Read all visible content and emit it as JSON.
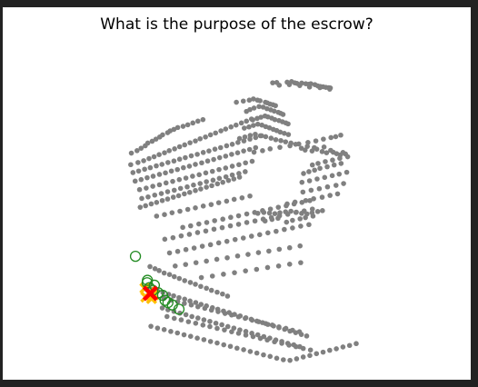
{
  "chart_data": {
    "type": "scatter",
    "title": "What is the purpose of the escrow?",
    "xlabel": "",
    "ylabel": "",
    "axes_visible": false,
    "grid": false,
    "legend": "none",
    "xlim": [
      0,
      100
    ],
    "ylim": [
      0,
      100
    ],
    "colors": {
      "points": "#808080",
      "neighbors": "#228b22",
      "hits": "#ffc000",
      "query": "#ff0000"
    },
    "series": [
      {
        "role": "points",
        "marker": "dot",
        "x": [
          61.1,
          62.4,
          65.7,
          67.1,
          68.1,
          68.8,
          70.3,
          71.6,
          72.5,
          73.2,
          74.5,
          75.4,
          76.2,
          77.1,
          78.0,
          78.9,
          79.4,
          63.2,
          66.4,
          69.7,
          72.8,
          76.1,
          79.2,
          49.6,
          51.8,
          53.7,
          55.0,
          56.3,
          57.1,
          58.8,
          59.4,
          60.3,
          61.2,
          62.0,
          52.8,
          53.9,
          55.2,
          56.8,
          58.1,
          59.3,
          60.5,
          61.6,
          62.9,
          63.6,
          64.4,
          54.8,
          56.2,
          57.4,
          58.7,
          59.6,
          60.8,
          61.8,
          63.1,
          64.2,
          65.3,
          66.0,
          52.1,
          53.6,
          55.0,
          56.4,
          57.7,
          58.9,
          60.1,
          61.3,
          62.4,
          63.5,
          64.8,
          66.1,
          50.6,
          52.3,
          54.0,
          55.6,
          57.2,
          58.9,
          60.6,
          62.1,
          63.7,
          65.2,
          66.9,
          68.4,
          55.2,
          57.9,
          60.3,
          63.4,
          66.6,
          69.4,
          72.3,
          74.8,
          77.2,
          79.6,
          81.1,
          82.7,
          70.2,
          71.4,
          72.1,
          73.6,
          74.3,
          75.1,
          76.8,
          77.4,
          78.2,
          79.5,
          80.3,
          81.4,
          82.6,
          83.4,
          84.2,
          73.7,
          75.5,
          77.8,
          80.1,
          82.4,
          84.9,
          70.9,
          72.6,
          74.4,
          76.1,
          78.4,
          80.6,
          82.8,
          70.4,
          72.8,
          75.2,
          77.6,
          80.0,
          82.2,
          84.6,
          70.7,
          73.3,
          75.9,
          78.5,
          81.2,
          83.6,
          65.7,
          68.2,
          71.6,
          74.1,
          76.8,
          79.3,
          81.7,
          56.4,
          58.3,
          60.1,
          61.8,
          63.4,
          65.2,
          66.9,
          68.6,
          70.3,
          72.0,
          73.6,
          75.4,
          76.9,
          58.7,
          60.9,
          62.8,
          65.5,
          67.4,
          69.8,
          71.5,
          73.9,
          16.3,
          18.1,
          19.4,
          20.7,
          21.5,
          22.9,
          24.1,
          25.3,
          26.2,
          27.8,
          28.6,
          29.8,
          31.0,
          32.7,
          34.2,
          35.8,
          37.4,
          39.0,
          16.1,
          18.4,
          20.2,
          21.9,
          23.5,
          25.1,
          26.8,
          28.3,
          30.0,
          31.6,
          33.2,
          34.9,
          36.6,
          38.1,
          39.8,
          41.4,
          43.0,
          44.7,
          46.2,
          47.9,
          49.5,
          51.2,
          52.8,
          54.4,
          16.8,
          18.6,
          20.5,
          22.3,
          24.2,
          26.0,
          27.9,
          29.8,
          31.6,
          33.4,
          35.3,
          37.2,
          39.1,
          40.9,
          42.8,
          44.6,
          46.5,
          48.3,
          50.1,
          52.0,
          53.9,
          55.7,
          57.6,
          17.5,
          19.4,
          21.3,
          23.2,
          25.2,
          27.1,
          29.0,
          30.9,
          32.8,
          34.7,
          36.6,
          38.6,
          40.5,
          42.4,
          44.3,
          46.2,
          48.1,
          50.0,
          51.9,
          53.8,
          55.7,
          18.9,
          21.0,
          23.1,
          25.2,
          27.3,
          29.4,
          31.5,
          33.6,
          35.7,
          37.8,
          39.9,
          42.0,
          44.1,
          46.2,
          48.3,
          50.4,
          52.5,
          54.6,
          19.6,
          21.6,
          23.7,
          25.8,
          27.8,
          29.9,
          31.9,
          34.0,
          36.0,
          38.1,
          40.1,
          42.2,
          44.2,
          46.3,
          48.3,
          50.4,
          52.4,
          19.1,
          20.8,
          22.6,
          24.3,
          26.1,
          27.8,
          29.6,
          31.3,
          33.1,
          34.8,
          36.6,
          38.3,
          40.1,
          41.8,
          43.6,
          45.3,
          47.1,
          48.8,
          50.6,
          24.3,
          26.8,
          29.2,
          31.7,
          34.2,
          36.6,
          39.1,
          41.6,
          44.0,
          46.5,
          48.9,
          51.4,
          53.9,
          32.6,
          35.1,
          37.7,
          40.2,
          42.7,
          45.3,
          47.8,
          50.3,
          52.9,
          55.4,
          57.9,
          60.4,
          62.9,
          65.4,
          67.9,
          70.4,
          72.9,
          26.9,
          29.5,
          32.1,
          34.7,
          37.3,
          39.9,
          42.5,
          45.1,
          47.7,
          50.3,
          52.9,
          55.5,
          58.1,
          60.7,
          63.3,
          65.9,
          68.5,
          71.1,
          73.7,
          28.4,
          31.0,
          33.6,
          36.2,
          38.8,
          41.4,
          44.0,
          46.6,
          49.2,
          51.8,
          54.4,
          57.0,
          59.6,
          62.2,
          64.8,
          67.4,
          70.0,
          72.6,
          30.2,
          33.5,
          36.8,
          40.1,
          43.4,
          46.7,
          50.0,
          53.3,
          56.6,
          59.9,
          63.2,
          66.5,
          69.8,
          38.5,
          42.0,
          45.5,
          49.0,
          52.5,
          56.0,
          59.5,
          63.0,
          66.5,
          70.0,
          22.2,
          23.8,
          25.1,
          26.7,
          28.4,
          29.9,
          31.5,
          33.2,
          35.0,
          36.6,
          38.3,
          40.1,
          41.7,
          43.5,
          45.2,
          46.8,
          21.4,
          22.9,
          24.6,
          26.3,
          28.1,
          29.7,
          31.4,
          33.2,
          34.9,
          36.7,
          38.4,
          40.1,
          42.0,
          43.7,
          45.5,
          47.3,
          49.0,
          50.8,
          52.6,
          54.3,
          56.1,
          57.9,
          59.6,
          61.4,
          63.1,
          64.9,
          66.6,
          68.4,
          70.2,
          71.9,
          26.7,
          28.9,
          31.0,
          33.1,
          35.3,
          37.4,
          39.6,
          41.7,
          43.8,
          46.0,
          48.1,
          50.3,
          52.4,
          54.6,
          56.7,
          58.9,
          61.0,
          63.1,
          65.3,
          67.4,
          69.6,
          26.1,
          27.9,
          29.8,
          31.7,
          33.6,
          35.5,
          37.4,
          39.3,
          41.2,
          43.1,
          45.0,
          46.9,
          48.8,
          50.7,
          52.6,
          54.5,
          56.4,
          58.3,
          60.2,
          62.1,
          64.0,
          65.9,
          67.8,
          69.7,
          27.6,
          29.9,
          32.1,
          34.4,
          36.7,
          39.0,
          41.2,
          43.5,
          45.8,
          48.1,
          50.3,
          52.6,
          54.9,
          57.2,
          59.4,
          61.7,
          64.0,
          66.3,
          68.5,
          70.8,
          73.1,
          22.5,
          24.6,
          26.7,
          28.8,
          30.9,
          33.0,
          35.1,
          37.2,
          39.3,
          41.4,
          43.5,
          45.6,
          47.7,
          49.8,
          51.9,
          54.0,
          56.1,
          58.2,
          60.3,
          62.4,
          64.5,
          66.6,
          68.7,
          70.8,
          72.9,
          75.0,
          77.1,
          79.2,
          81.3,
          83.4,
          85.5,
          87.6
        ],
        "y": [
          91.6,
          91.7,
          91.8,
          92.0,
          91.6,
          91.4,
          91.5,
          91.3,
          91.1,
          91.3,
          91.0,
          90.6,
          90.4,
          90.3,
          90.1,
          90.0,
          89.9,
          90.8,
          91.0,
          90.7,
          90.2,
          90.0,
          89.5,
          85.2,
          85.6,
          85.9,
          86.3,
          85.9,
          85.7,
          85.2,
          85.0,
          84.6,
          84.4,
          84.1,
          82.2,
          82.8,
          83.3,
          83.8,
          83.6,
          83.1,
          82.7,
          82.3,
          81.9,
          81.6,
          81.2,
          79.4,
          79.9,
          80.3,
          80.7,
          80.4,
          80.0,
          79.5,
          79.2,
          78.8,
          78.4,
          78.1,
          76.7,
          77.1,
          77.6,
          78.0,
          77.7,
          77.2,
          76.8,
          76.3,
          75.9,
          75.4,
          75.0,
          74.6,
          73.3,
          73.8,
          74.3,
          74.7,
          74.2,
          73.9,
          73.4,
          72.9,
          72.6,
          72.2,
          71.8,
          71.4,
          68.8,
          69.3,
          69.9,
          70.4,
          70.9,
          71.5,
          72.0,
          72.5,
          73.1,
          73.6,
          73.9,
          74.4,
          70.1,
          69.5,
          70.7,
          69.2,
          70.3,
          69.8,
          69.0,
          70.5,
          68.6,
          69.4,
          68.8,
          68.3,
          67.9,
          68.7,
          68.2,
          64.6,
          65.1,
          65.7,
          66.2,
          66.8,
          67.3,
          61.8,
          62.4,
          62.9,
          63.5,
          64.0,
          64.6,
          65.1,
          58.9,
          59.4,
          60.0,
          60.5,
          61.1,
          61.6,
          62.2,
          55.7,
          56.3,
          56.8,
          57.4,
          57.9,
          58.5,
          51.8,
          52.4,
          52.9,
          53.5,
          54.0,
          54.6,
          55.1,
          48.7,
          49.0,
          48.8,
          48.6,
          48.9,
          49.2,
          49.4,
          49.1,
          48.7,
          48.5,
          48.9,
          49.3,
          49.6,
          46.2,
          46.7,
          47.1,
          45.8,
          46.4,
          46.9,
          47.3,
          47.8,
          68.5,
          69.3,
          70.1,
          70.9,
          71.8,
          72.4,
          73.1,
          73.8,
          74.5,
          75.2,
          75.8,
          76.3,
          76.9,
          77.3,
          77.8,
          78.4,
          79.0,
          79.5,
          64.7,
          65.4,
          66.0,
          66.7,
          67.3,
          68.0,
          68.6,
          69.3,
          69.9,
          70.6,
          71.2,
          71.9,
          72.5,
          73.2,
          73.8,
          74.5,
          75.1,
          75.8,
          76.4,
          77.1,
          77.7,
          78.4,
          79.0,
          79.7,
          62.1,
          62.6,
          63.2,
          63.7,
          64.3,
          64.8,
          65.4,
          65.9,
          66.5,
          67.0,
          67.6,
          68.1,
          68.7,
          69.2,
          69.8,
          70.3,
          70.9,
          71.4,
          72.0,
          72.5,
          73.1,
          73.6,
          74.2,
          59.3,
          59.8,
          60.4,
          60.9,
          61.5,
          62.0,
          62.6,
          63.1,
          63.7,
          64.2,
          64.8,
          65.3,
          65.9,
          66.4,
          67.0,
          67.5,
          68.1,
          68.6,
          69.2,
          69.7,
          70.3,
          56.5,
          57.0,
          57.6,
          58.1,
          58.7,
          59.2,
          59.8,
          60.3,
          60.9,
          61.4,
          62.0,
          62.5,
          63.1,
          63.6,
          64.2,
          64.7,
          65.3,
          65.8,
          53.6,
          54.1,
          54.7,
          55.2,
          55.8,
          56.3,
          56.9,
          57.4,
          58.0,
          58.5,
          59.1,
          59.6,
          60.2,
          60.7,
          61.3,
          61.8,
          62.4,
          50.7,
          51.2,
          51.8,
          52.3,
          52.9,
          53.4,
          54.0,
          54.5,
          55.1,
          55.6,
          56.2,
          56.7,
          57.3,
          57.8,
          58.4,
          58.9,
          59.5,
          60.0,
          60.6,
          47.8,
          48.3,
          48.9,
          49.4,
          50.0,
          50.5,
          51.1,
          51.6,
          52.2,
          52.7,
          53.3,
          53.8,
          54.4,
          44.1,
          44.6,
          45.2,
          45.7,
          46.3,
          46.8,
          47.4,
          47.9,
          48.5,
          49.0,
          49.6,
          50.1,
          50.7,
          51.2,
          51.8,
          52.3,
          52.9,
          40.2,
          40.7,
          41.3,
          41.8,
          42.4,
          42.9,
          43.5,
          44.0,
          44.6,
          45.1,
          45.7,
          46.2,
          46.8,
          47.3,
          47.9,
          48.4,
          49.0,
          49.5,
          50.1,
          35.7,
          36.2,
          36.8,
          37.3,
          37.9,
          38.4,
          39.0,
          39.5,
          40.1,
          40.6,
          41.2,
          41.7,
          42.3,
          42.8,
          43.4,
          43.9,
          44.5,
          45.0,
          31.4,
          31.9,
          32.5,
          33.0,
          33.6,
          34.1,
          34.7,
          35.2,
          35.8,
          36.3,
          36.9,
          37.4,
          38.0,
          27.6,
          28.1,
          28.7,
          29.2,
          29.8,
          30.3,
          30.9,
          31.4,
          32.0,
          32.5,
          31.2,
          30.5,
          29.9,
          29.1,
          28.6,
          27.9,
          27.3,
          26.6,
          26.0,
          25.4,
          24.7,
          24.1,
          23.4,
          22.8,
          22.2,
          21.5,
          24.3,
          23.8,
          23.2,
          22.7,
          22.1,
          21.6,
          21.0,
          20.5,
          19.9,
          19.4,
          18.8,
          18.3,
          17.7,
          17.2,
          16.6,
          16.1,
          15.5,
          15.0,
          14.4,
          13.9,
          13.3,
          12.8,
          12.2,
          11.7,
          11.1,
          10.6,
          10.0,
          9.5,
          8.9,
          8.4,
          20.8,
          20.2,
          19.7,
          19.1,
          18.6,
          18.0,
          17.5,
          16.9,
          16.4,
          15.8,
          15.3,
          14.7,
          14.2,
          13.6,
          13.1,
          12.5,
          12.0,
          11.4,
          10.9,
          10.3,
          9.8,
          17.6,
          17.0,
          16.5,
          15.9,
          15.4,
          14.8,
          14.3,
          13.7,
          13.2,
          12.6,
          12.1,
          11.5,
          11.0,
          10.4,
          9.9,
          9.3,
          8.8,
          8.2,
          7.7,
          7.1,
          6.6,
          6.0,
          5.5,
          4.9,
          14.8,
          14.2,
          13.7,
          13.1,
          12.6,
          12.0,
          11.5,
          10.9,
          10.4,
          9.8,
          9.3,
          8.7,
          8.2,
          7.6,
          7.1,
          6.5,
          6.0,
          5.4,
          4.9,
          4.3,
          3.8,
          11.6,
          11.0,
          10.5,
          9.9,
          9.4,
          8.8,
          8.3,
          7.7,
          7.2,
          6.6,
          6.1,
          5.5,
          5.0,
          4.4,
          3.9,
          3.3,
          2.8,
          2.2,
          1.7,
          1.1,
          0.6,
          0.4,
          0.9,
          1.5,
          2.0,
          2.6,
          3.1,
          3.7,
          4.2,
          4.8,
          5.3,
          5.9
        ]
      },
      {
        "role": "neighbors",
        "marker": "open-circle",
        "x": [
          17.6,
          21.3,
          22.0,
          23.1,
          24.8,
          26.2,
          27.0,
          27.9,
          29.3,
          31.4,
          21.4,
          23.6
        ],
        "y": [
          34.6,
          25.9,
          24.3,
          23.4,
          22.6,
          21.8,
          20.1,
          19.4,
          18.6,
          17.2,
          26.7,
          25.1
        ]
      },
      {
        "role": "hits",
        "marker": "cross",
        "x": [
          20.6,
          22.1,
          23.4,
          20.9,
          22.7
        ],
        "y": [
          24.1,
          22.8,
          21.9,
          21.2,
          20.7
        ]
      },
      {
        "role": "query",
        "marker": "cross",
        "x": [
          22.3
        ],
        "y": [
          22.4
        ]
      }
    ]
  }
}
